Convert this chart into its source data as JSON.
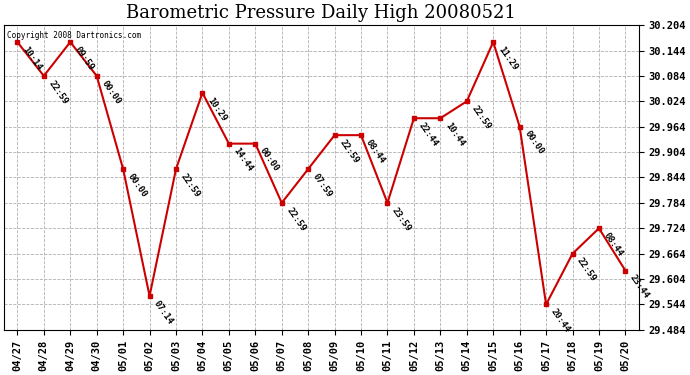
{
  "title": "Barometric Pressure Daily High 20080521",
  "copyright": "Copyright 2008 Dartronics.com",
  "x_labels": [
    "04/27",
    "04/28",
    "04/29",
    "04/30",
    "05/01",
    "05/02",
    "05/03",
    "05/04",
    "05/05",
    "05/06",
    "05/07",
    "05/08",
    "05/09",
    "05/10",
    "05/11",
    "05/12",
    "05/13",
    "05/14",
    "05/15",
    "05/16",
    "05/17",
    "05/18",
    "05/19",
    "05/20"
  ],
  "y_values": [
    30.164,
    30.084,
    30.164,
    30.084,
    29.864,
    29.564,
    29.864,
    30.044,
    29.924,
    29.924,
    29.784,
    29.864,
    29.944,
    29.944,
    29.784,
    29.984,
    29.984,
    30.024,
    30.164,
    29.964,
    29.544,
    29.664,
    29.724,
    29.624
  ],
  "point_labels": [
    "10:14",
    "22:59",
    "09:59",
    "00:00",
    "00:00",
    "07:14",
    "22:59",
    "10:29",
    "14:44",
    "00:00",
    "22:59",
    "07:59",
    "22:59",
    "08:44",
    "23:59",
    "22:44",
    "10:44",
    "22:59",
    "11:29",
    "00:00",
    "20:44",
    "22:59",
    "08:44",
    "23:44"
  ],
  "ylim": [
    29.484,
    30.204
  ],
  "yticks": [
    29.484,
    29.544,
    29.604,
    29.664,
    29.724,
    29.784,
    29.844,
    29.904,
    29.964,
    30.024,
    30.084,
    30.144,
    30.204
  ],
  "line_color": "#cc0000",
  "marker_color": "#cc0000",
  "bg_color": "#ffffff",
  "grid_color": "#b0b0b0",
  "title_fontsize": 13,
  "tick_fontsize": 7.5,
  "point_label_fontsize": 6.5
}
